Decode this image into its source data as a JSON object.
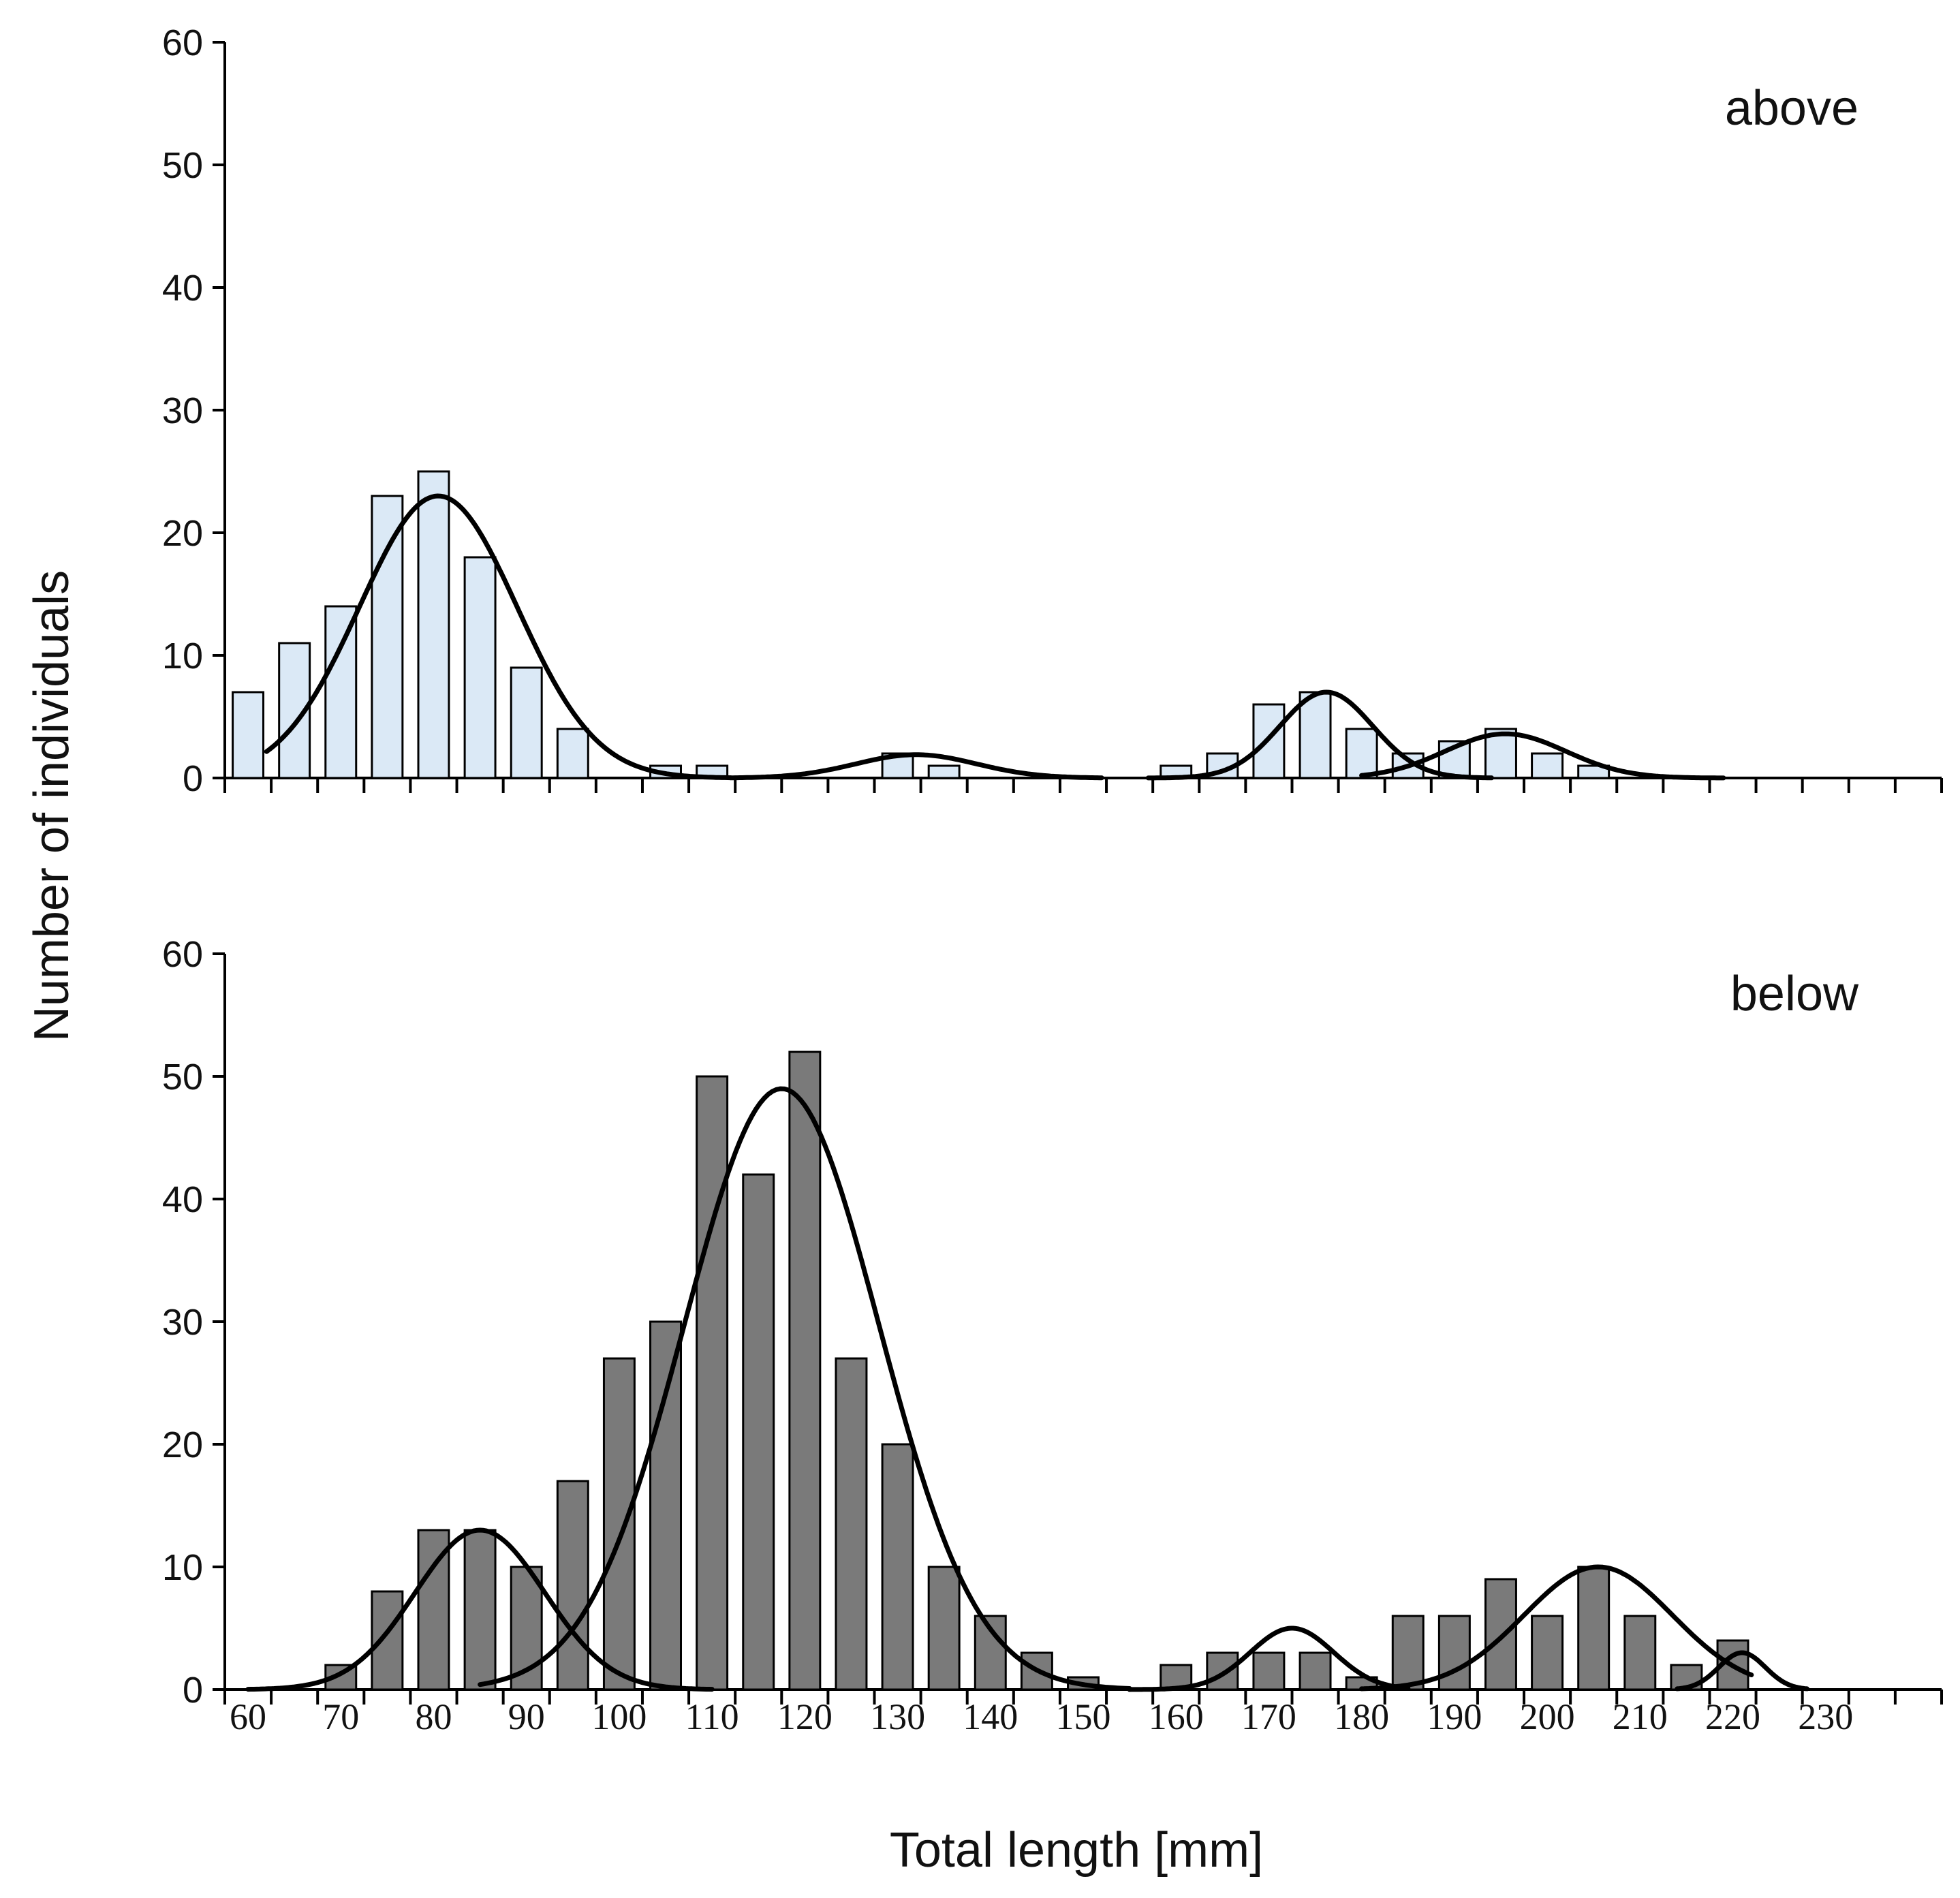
{
  "chart_data": {
    "type": "bar",
    "xlabel": "Total length [mm]",
    "ylabel": "Number of individuals",
    "x_tick_labels": [
      "60",
      "70",
      "80",
      "90",
      "100",
      "110",
      "120",
      "130",
      "140",
      "150",
      "160",
      "170",
      "180",
      "190",
      "200",
      "210",
      "220",
      "230"
    ],
    "x_range": [
      57.5,
      242.5
    ],
    "bin_width": 5,
    "colors": {
      "above_bars": "#dbe9f6",
      "below_bars": "#7a7a7a",
      "bar_edge": "#000000",
      "curve": "#000000"
    },
    "panels": [
      {
        "label": "above",
        "ylim": [
          0,
          60
        ],
        "yticks": [
          "0",
          "10",
          "20",
          "30",
          "40",
          "50",
          "60"
        ],
        "bars": [
          {
            "x": 60,
            "y": 7
          },
          {
            "x": 65,
            "y": 11
          },
          {
            "x": 70,
            "y": 14
          },
          {
            "x": 75,
            "y": 23
          },
          {
            "x": 80,
            "y": 25
          },
          {
            "x": 85,
            "y": 18
          },
          {
            "x": 90,
            "y": 9
          },
          {
            "x": 95,
            "y": 4
          },
          {
            "x": 105,
            "y": 1
          },
          {
            "x": 110,
            "y": 1
          },
          {
            "x": 130,
            "y": 2
          },
          {
            "x": 135,
            "y": 1
          },
          {
            "x": 160,
            "y": 1
          },
          {
            "x": 165,
            "y": 2
          },
          {
            "x": 170,
            "y": 6
          },
          {
            "x": 175,
            "y": 7
          },
          {
            "x": 180,
            "y": 4
          },
          {
            "x": 185,
            "y": 2
          },
          {
            "x": 190,
            "y": 3
          },
          {
            "x": 195,
            "y": 4
          },
          {
            "x": 200,
            "y": 2
          },
          {
            "x": 205,
            "y": 1
          }
        ],
        "fitted_curves": [
          {
            "mean": 80.5,
            "sd": 8.5,
            "peak": 23,
            "x_range": [
              62,
              112
            ]
          },
          {
            "mean": 132,
            "sd": 6.5,
            "peak": 1.9,
            "x_range": [
              112,
              152
            ]
          },
          {
            "mean": 176.2,
            "sd": 5,
            "peak": 7,
            "x_range": [
              157,
              194
            ]
          },
          {
            "mean": 195.5,
            "sd": 6.5,
            "peak": 3.6,
            "x_range": [
              180,
              219
            ]
          }
        ]
      },
      {
        "label": "below",
        "ylim": [
          0,
          60
        ],
        "yticks": [
          "0",
          "10",
          "20",
          "30",
          "40",
          "50",
          "60"
        ],
        "bars": [
          {
            "x": 70,
            "y": 2
          },
          {
            "x": 75,
            "y": 8
          },
          {
            "x": 80,
            "y": 13
          },
          {
            "x": 85,
            "y": 13
          },
          {
            "x": 90,
            "y": 10
          },
          {
            "x": 95,
            "y": 17
          },
          {
            "x": 100,
            "y": 27
          },
          {
            "x": 105,
            "y": 30
          },
          {
            "x": 110,
            "y": 50
          },
          {
            "x": 115,
            "y": 42
          },
          {
            "x": 120,
            "y": 52
          },
          {
            "x": 125,
            "y": 27
          },
          {
            "x": 130,
            "y": 20
          },
          {
            "x": 135,
            "y": 10
          },
          {
            "x": 140,
            "y": 6
          },
          {
            "x": 145,
            "y": 3
          },
          {
            "x": 150,
            "y": 1
          },
          {
            "x": 160,
            "y": 2
          },
          {
            "x": 165,
            "y": 3
          },
          {
            "x": 170,
            "y": 3
          },
          {
            "x": 175,
            "y": 3
          },
          {
            "x": 180,
            "y": 1
          },
          {
            "x": 185,
            "y": 6
          },
          {
            "x": 190,
            "y": 6
          },
          {
            "x": 195,
            "y": 9
          },
          {
            "x": 200,
            "y": 6
          },
          {
            "x": 205,
            "y": 10
          },
          {
            "x": 210,
            "y": 6
          },
          {
            "x": 215,
            "y": 2
          },
          {
            "x": 220,
            "y": 4
          }
        ],
        "fitted_curves": [
          {
            "mean": 85,
            "sd": 7,
            "peak": 13,
            "x_range": [
              60,
              110
            ]
          },
          {
            "mean": 117.5,
            "sd": 10.5,
            "peak": 49,
            "x_range": [
              85,
              155
            ]
          },
          {
            "mean": 172.5,
            "sd": 4.5,
            "peak": 5,
            "x_range": [
              155,
              185
            ]
          },
          {
            "mean": 205.5,
            "sd": 8,
            "peak": 10,
            "x_range": [
              180,
              222
            ]
          },
          {
            "mean": 221,
            "sd": 2.5,
            "peak": 3,
            "x_range": [
              214,
              228
            ]
          }
        ]
      }
    ]
  }
}
